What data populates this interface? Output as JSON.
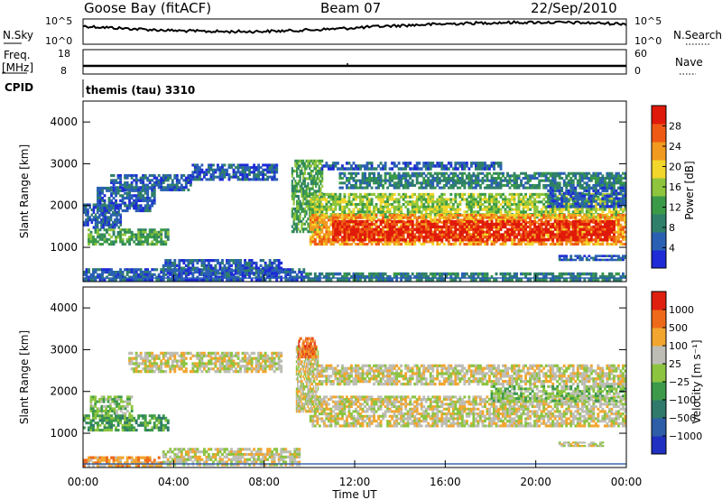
{
  "header": {
    "radar": "Goose Bay (fitACF)",
    "beam": "Beam 07",
    "date": "22/Sep/2010"
  },
  "sky_panel": {
    "left_label": "N.Sky",
    "right_label": "N.Search",
    "left_ticks": [
      "10^5",
      "10^0"
    ],
    "right_ticks": [
      "10^5",
      "10^0"
    ]
  },
  "freq_panel": {
    "left_label_1": "Freq.",
    "left_label_2": "[MHz]",
    "right_label": "Nave",
    "left_ticks": [
      "18",
      "8"
    ],
    "right_ticks": [
      "60",
      "0"
    ]
  },
  "cpid_panel": {
    "label": "CPID",
    "mode": "themis (tau) 3310"
  },
  "chart_data": [
    {
      "type": "heatmap",
      "name": "power",
      "ylabel": "Slant Range [km]",
      "yticks": [
        "4000",
        "3000",
        "2000",
        "1000"
      ],
      "ylim": [
        180,
        4500
      ],
      "xlim": [
        0,
        24
      ],
      "colorbar_label": "Power [dB]",
      "colorbar_ticks": [
        "28",
        "24",
        "20",
        "16",
        "12",
        "8",
        "4"
      ],
      "colors": [
        "#1e2bd6",
        "#2a60b4",
        "#2f7f6a",
        "#3a9a48",
        "#8ec53c",
        "#f2d62b",
        "#f29a1f",
        "#ee5a14",
        "#e01a0a"
      ],
      "bands": [
        {
          "x0": 0.0,
          "x1": 1.7,
          "r0": 1450,
          "r1": 2050,
          "level": 1
        },
        {
          "x0": 0.2,
          "x1": 3.8,
          "r0": 1050,
          "r1": 1450,
          "level": 3
        },
        {
          "x0": 0.6,
          "x1": 3.2,
          "r0": 1850,
          "r1": 2450,
          "level": 1
        },
        {
          "x0": 1.2,
          "x1": 4.8,
          "r0": 2350,
          "r1": 2750,
          "level": 1
        },
        {
          "x0": 4.8,
          "x1": 8.6,
          "r0": 2600,
          "r1": 3000,
          "level": 1
        },
        {
          "x0": 0.0,
          "x1": 9.8,
          "r0": 200,
          "r1": 500,
          "level": 1
        },
        {
          "x0": 3.5,
          "x1": 8.8,
          "r0": 350,
          "r1": 720,
          "level": 1
        },
        {
          "x0": 9.2,
          "x1": 10.6,
          "r0": 1350,
          "r1": 3100,
          "level": 3
        },
        {
          "x0": 10.0,
          "x1": 24.0,
          "r0": 1700,
          "r1": 2300,
          "level": 4
        },
        {
          "x0": 10.0,
          "x1": 24.0,
          "r0": 1050,
          "r1": 1800,
          "level": 6
        },
        {
          "x0": 11.0,
          "x1": 23.5,
          "r0": 1150,
          "r1": 1650,
          "level": 8
        },
        {
          "x0": 11.3,
          "x1": 24.0,
          "r0": 2400,
          "r1": 2800,
          "level": 2
        },
        {
          "x0": 10.5,
          "x1": 18.5,
          "r0": 2850,
          "r1": 3050,
          "level": 1
        },
        {
          "x0": 20.5,
          "x1": 24.0,
          "r0": 1950,
          "r1": 2450,
          "level": 1
        },
        {
          "x0": 21.0,
          "x1": 24.0,
          "r0": 680,
          "r1": 820,
          "level": 1
        },
        {
          "x0": 9.8,
          "x1": 24.0,
          "r0": 200,
          "r1": 400,
          "level": 2
        }
      ]
    },
    {
      "type": "heatmap",
      "name": "velocity",
      "ylabel": "Slant Range [km]",
      "yticks": [
        "4000",
        "3000",
        "2000",
        "1000"
      ],
      "ylim": [
        180,
        4500
      ],
      "xlim": [
        0,
        24
      ],
      "xticks": [
        "00:00",
        "04:00",
        "08:00",
        "12:00",
        "16:00",
        "20:00",
        "00:00"
      ],
      "xlabel": "Time UT",
      "colorbar_label": "Velocity [m s⁻¹]",
      "colorbar_ticks": [
        "1000",
        "500",
        "100",
        "25",
        "−25",
        "−100",
        "−500",
        "−1000"
      ],
      "colors": [
        "#2030c0",
        "#2e5ea8",
        "#2f7a6a",
        "#3c9a4a",
        "#8cc440",
        "#bdbdb5",
        "#f2a630",
        "#ee6a1a",
        "#e0200f"
      ],
      "bands": [
        {
          "x0": 0.0,
          "x1": 3.8,
          "r0": 1050,
          "r1": 1450,
          "level": 3
        },
        {
          "x0": 0.3,
          "x1": 2.2,
          "r0": 1450,
          "r1": 1900,
          "level": 4
        },
        {
          "x0": 2.0,
          "x1": 8.8,
          "r0": 2450,
          "r1": 2950,
          "level": 5
        },
        {
          "x0": 3.5,
          "x1": 9.6,
          "r0": 220,
          "r1": 650,
          "level": 5
        },
        {
          "x0": 0.0,
          "x1": 3.5,
          "r0": 200,
          "r1": 450,
          "level": 6
        },
        {
          "x0": 9.4,
          "x1": 10.4,
          "r0": 1500,
          "r1": 3100,
          "level": 5
        },
        {
          "x0": 10.0,
          "x1": 24.0,
          "r0": 1150,
          "r1": 1900,
          "level": 5
        },
        {
          "x0": 10.3,
          "x1": 24.0,
          "r0": 2150,
          "r1": 2650,
          "level": 5
        },
        {
          "x0": 18.0,
          "x1": 24.0,
          "r0": 1750,
          "r1": 2150,
          "level": 4
        },
        {
          "x0": 21.0,
          "x1": 23.0,
          "r0": 680,
          "r1": 800,
          "level": 5
        },
        {
          "x0": 9.5,
          "x1": 10.3,
          "r0": 2800,
          "r1": 3300,
          "level": 7
        }
      ]
    }
  ]
}
